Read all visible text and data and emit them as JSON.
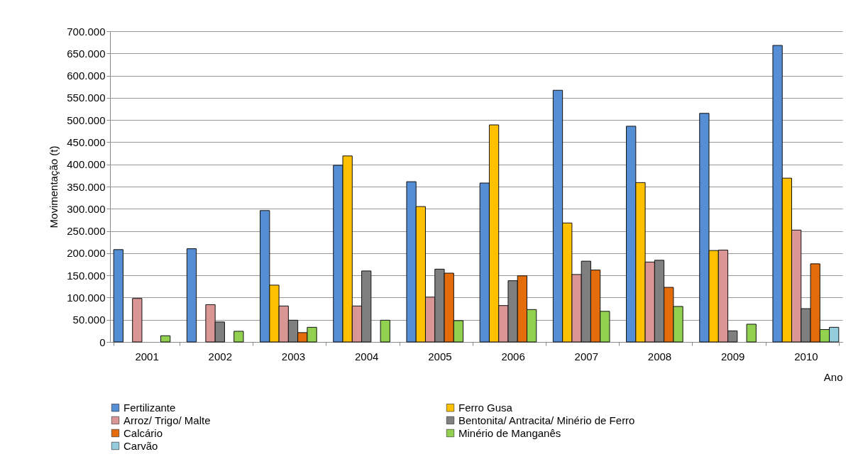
{
  "chart_data": {
    "type": "bar",
    "xlabel": "Ano",
    "ylabel": "Movimentação (t)",
    "categories": [
      "2001",
      "2002",
      "2003",
      "2004",
      "2005",
      "2006",
      "2007",
      "2008",
      "2009",
      "2010"
    ],
    "series": [
      {
        "name": "Fertilizante",
        "color": "#558ed5",
        "values": [
          208000,
          210000,
          296000,
          398000,
          361000,
          358000,
          567000,
          486000,
          515000,
          668000
        ]
      },
      {
        "name": "Ferro Gusa",
        "color": "#ffc000",
        "values": [
          null,
          null,
          128000,
          419000,
          305000,
          489000,
          268000,
          359000,
          206000,
          369000
        ]
      },
      {
        "name": "Arroz/ Trigo/ Malte",
        "color": "#d99694",
        "values": [
          98000,
          84000,
          81000,
          81000,
          101000,
          82000,
          152000,
          180000,
          207000,
          252000
        ]
      },
      {
        "name": "Bentonita/ Antracita/ Minério de Ferro",
        "color": "#7f7f7f",
        "values": [
          null,
          45000,
          49000,
          160000,
          164000,
          138000,
          182000,
          184000,
          25000,
          75000
        ]
      },
      {
        "name": "Calcário",
        "color": "#e46c0a",
        "values": [
          null,
          null,
          21000,
          null,
          155000,
          149000,
          162000,
          123000,
          null,
          176000
        ]
      },
      {
        "name": "Minério de Manganês",
        "color": "#92d050",
        "values": [
          14000,
          24000,
          33000,
          49000,
          48000,
          73000,
          69000,
          80000,
          40000,
          28000
        ]
      },
      {
        "name": "Carvão",
        "color": "#93cddd",
        "values": [
          null,
          null,
          null,
          null,
          null,
          null,
          null,
          null,
          null,
          33000
        ]
      }
    ],
    "ylim": [
      0,
      700000
    ],
    "yticks": [
      {
        "value": 0,
        "label": "0"
      },
      {
        "value": 50000,
        "label": "50.000"
      },
      {
        "value": 100000,
        "label": "100.000"
      },
      {
        "value": 150000,
        "label": "150.000"
      },
      {
        "value": 200000,
        "label": "200.000"
      },
      {
        "value": 250000,
        "label": "250.000"
      },
      {
        "value": 300000,
        "label": "300.000"
      },
      {
        "value": 350000,
        "label": "350.000"
      },
      {
        "value": 400000,
        "label": "400.000"
      },
      {
        "value": 450000,
        "label": "450.000"
      },
      {
        "value": 500000,
        "label": "500.000"
      },
      {
        "value": 550000,
        "label": "550.000"
      },
      {
        "value": 600000,
        "label": "600.000"
      },
      {
        "value": 650000,
        "label": "650.000"
      },
      {
        "value": 700000,
        "label": "700.000"
      }
    ],
    "grid": true,
    "legend": "bottom"
  }
}
